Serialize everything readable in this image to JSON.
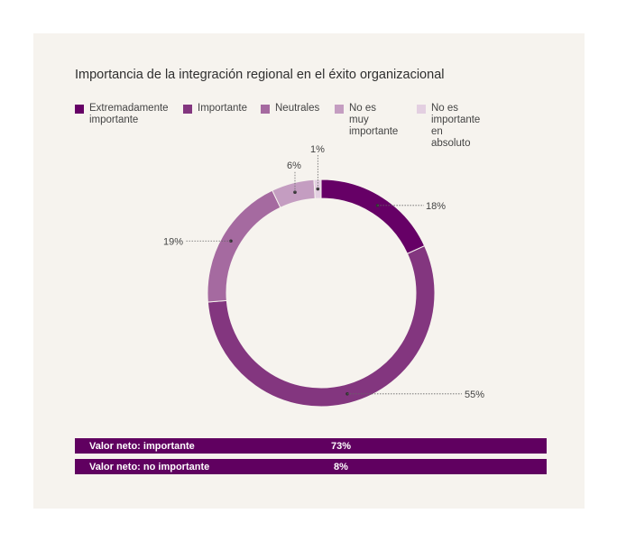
{
  "title": "Importancia de la integración regional en el éxito organizacional",
  "colors": {
    "card_bg": "#f6f3ee",
    "net_bar": "#600060"
  },
  "net_values": [
    {
      "label": "Valor neto: importante",
      "value": "73%"
    },
    {
      "label": "Valor neto: no importante",
      "value": "8%"
    }
  ],
  "chart_data": {
    "type": "pie",
    "variant": "donut",
    "title": "Importancia de la integración regional en el éxito organizacional",
    "legend_position": "top",
    "slices": [
      {
        "name": "Extremadamente importante",
        "legend_label": "Extremadamente\nimportante",
        "value": 18,
        "label": "18%",
        "color": "#660066"
      },
      {
        "name": "Importante",
        "legend_label": "Importante",
        "value": 55,
        "label": "55%",
        "color": "#83367f"
      },
      {
        "name": "Neutrales",
        "legend_label": "Neutrales",
        "value": 19,
        "label": "19%",
        "color": "#a56aa0"
      },
      {
        "name": "No es muy importante",
        "legend_label": "No es muy\nimportante",
        "value": 6,
        "label": "6%",
        "color": "#c49dc1"
      },
      {
        "name": "No es importante en absoluto",
        "legend_label": "No es importante\nen absoluto",
        "value": 1,
        "label": "1%",
        "color": "#e3cfe1"
      }
    ]
  }
}
